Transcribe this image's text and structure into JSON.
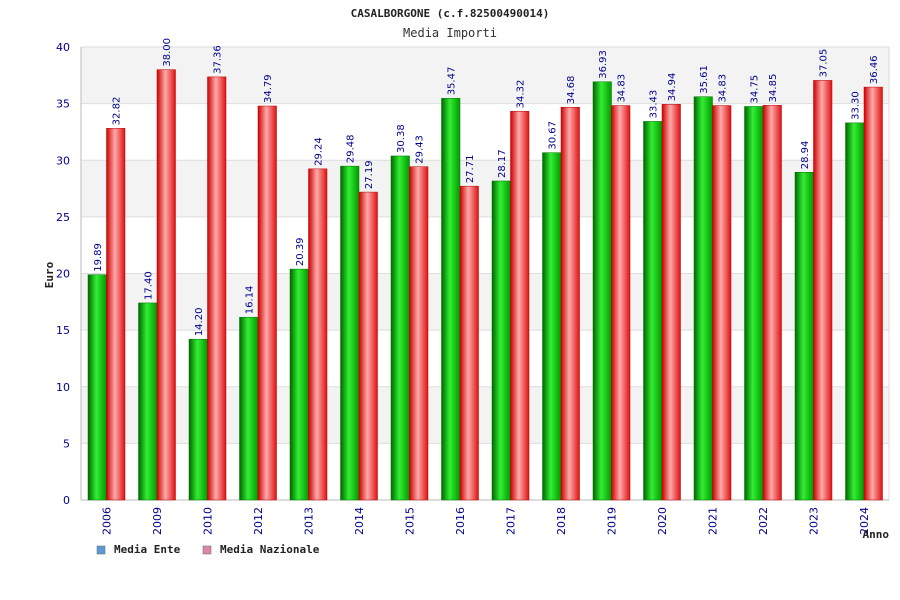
{
  "chart_data": {
    "type": "bar",
    "title": "CASALBORGONE (c.f.82500490014)",
    "subtitle": "Media Importi",
    "xlabel": "Anno",
    "ylabel": "Euro",
    "ylim": [
      0,
      40
    ],
    "yticks": [
      "0",
      "5",
      "10",
      "15",
      "20",
      "25",
      "30",
      "35",
      "40"
    ],
    "grid": true,
    "legend_position": "bottom-left",
    "categories": [
      "2006",
      "2009",
      "2010",
      "2012",
      "2013",
      "2014",
      "2015",
      "2016",
      "2017",
      "2018",
      "2019",
      "2020",
      "2021",
      "2022",
      "2023",
      "2024"
    ],
    "series": [
      {
        "name": "Media Ente",
        "color": "#00bb00",
        "legend_color": "#5b9bd5",
        "values": [
          19.89,
          17.4,
          14.2,
          16.14,
          20.39,
          29.48,
          30.38,
          35.47,
          28.17,
          30.67,
          36.93,
          33.43,
          35.61,
          34.75,
          28.94,
          33.3
        ],
        "labels": [
          "19.89",
          "17.40",
          "14.20",
          "16.14",
          "20.39",
          "29.48",
          "30.38",
          "35.47",
          "28.17",
          "30.67",
          "36.93",
          "33.43",
          "35.61",
          "34.75",
          "28.94",
          "33.30"
        ]
      },
      {
        "name": "Media Nazionale",
        "color": "#ee1111",
        "legend_color": "#dd88aa",
        "values": [
          32.82,
          38.0,
          37.36,
          34.79,
          29.24,
          27.19,
          29.43,
          27.71,
          34.32,
          34.68,
          34.83,
          34.94,
          34.83,
          34.85,
          37.05,
          36.46
        ],
        "labels": [
          "32.82",
          "38.00",
          "37.36",
          "34.79",
          "29.24",
          "27.19",
          "29.43",
          "27.71",
          "34.32",
          "34.68",
          "34.83",
          "34.94",
          "34.83",
          "34.85",
          "37.05",
          "36.46"
        ]
      }
    ]
  }
}
